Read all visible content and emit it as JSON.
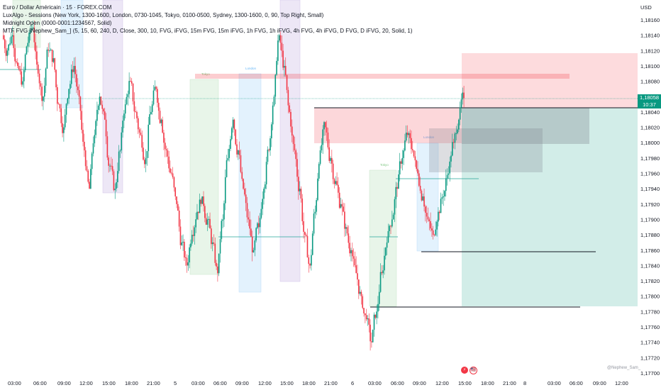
{
  "legend": {
    "symbol_line": "Euro / Dollar Américain · 15 · FOREX.COM",
    "sessions_line": "LuxAlgo - Sessions (New York, 1300-1600, London, 0730-1045, Tokyo, 0100-0500, Sydney, 1300-1600, 0, 90, Top Right, Small)",
    "midnight_line": "Midnight Open (0000-0001:1234567, Solid)",
    "fvg_line": "MTF FVG [Nephew_Sam_] (5, 15, 60, 240, D, Close, 300, 10, FVG, iFVG, 15m FVG, 15m iFVG, 1h FVG, 1h iFVG, 4h FVG, 4h iFVG, D FVG, D iFVG, 20, Solid, 1)"
  },
  "currency": "USD",
  "price_badge": {
    "price": "1,18058",
    "countdown": "10:37"
  },
  "watermark": "@Nephew_Sam_",
  "events": {
    "first": "⚡",
    "second": "🇺🇸"
  },
  "price_axis": {
    "ticks": [
      "1,18160",
      "1,18140",
      "1,18120",
      "1,18100",
      "1,18080",
      "1,18060",
      "1,18040",
      "1,18020",
      "1,18000",
      "1,17980",
      "1,17960",
      "1,17940",
      "1,17920",
      "1,17900",
      "1,17880",
      "1,17860",
      "1,17840",
      "1,17820",
      "1,17800",
      "1,17780",
      "1,17760",
      "1,17740",
      "1,17720",
      "1,17700"
    ]
  },
  "time_axis": {
    "ticks": [
      "03:00",
      "06:00",
      "09:00",
      "12:00",
      "15:00",
      "18:00",
      "21:00",
      "5",
      "03:00",
      "06:00",
      "09:00",
      "12:00",
      "15:00",
      "18:00",
      "21:00",
      "6",
      "03:00",
      "06:00",
      "09:00",
      "12:00",
      "15:00",
      "18:00",
      "21:00",
      "8",
      "03:00",
      "06:00",
      "09:00",
      "12:00"
    ]
  },
  "session_labels": {
    "tokyo": "Tokyo",
    "london": "London"
  },
  "colors": {
    "up": "#089981",
    "down": "#f23645",
    "tokyo": "#c8e6c9",
    "london": "#bbdefb",
    "newyork": "#d1c4e9",
    "sell_zone": "#f8bbd0",
    "buy_zone": "#b2dfdb"
  },
  "chart_data": {
    "type": "candlestick",
    "symbol": "EUR/USD",
    "timeframe": "15",
    "ylim": [
      1.17695,
      1.18185
    ],
    "current_price": 1.18058,
    "series": [
      {
        "values": [
          1.1812,
          1.1814,
          1.181,
          1.1808,
          1.1813,
          1.1815,
          1.1809,
          1.1806,
          1.1812,
          1.1811,
          1.1805,
          1.1802,
          1.1807,
          1.181,
          1.1806,
          1.1799,
          1.1794,
          1.1801,
          1.1806,
          1.1803,
          1.1797,
          1.1794,
          1.1799,
          1.1805,
          1.1808,
          1.1804,
          1.1801,
          1.1798,
          1.1804,
          1.1807,
          1.1803,
          1.1799,
          1.1796,
          1.1792,
          1.1787,
          1.1784,
          1.1788,
          1.1791,
          1.1793,
          1.179,
          1.1787,
          1.1783,
          1.179,
          1.1798,
          1.1803,
          1.1799,
          1.1794,
          1.179,
          1.1786,
          1.1789,
          1.1794,
          1.1799,
          1.1806,
          1.1814,
          1.181,
          1.1804,
          1.1799,
          1.1794,
          1.1788,
          1.1784,
          1.1791,
          1.1799,
          1.1802,
          1.1798,
          1.1795,
          1.1792,
          1.1789,
          1.1786,
          1.1783,
          1.178,
          1.1777,
          1.1774,
          1.1778,
          1.1783,
          1.1787,
          1.179,
          1.1794,
          1.1798,
          1.1801,
          1.1799,
          1.1796,
          1.1793,
          1.179,
          1.1788,
          1.1791,
          1.1793,
          1.1796,
          1.18,
          1.1803,
          1.18058
        ]
      }
    ],
    "zones": {
      "stop_zone": [
        1.1804,
        1.1812
      ],
      "target_zone": [
        1.17785,
        1.1804
      ],
      "sell_fvg": [
        1.17998,
        1.18045
      ],
      "grey_fvg_1": [
        1.17998,
        1.18044
      ],
      "grey_fvg_2": [
        1.1796,
        1.18014
      ],
      "top_line": [
        1.18088,
        1.18092
      ]
    },
    "levels": [
      1.18045,
      1.17858,
      1.17786,
      1.17955,
      1.17875,
      1.1806,
      1.17956
    ]
  }
}
